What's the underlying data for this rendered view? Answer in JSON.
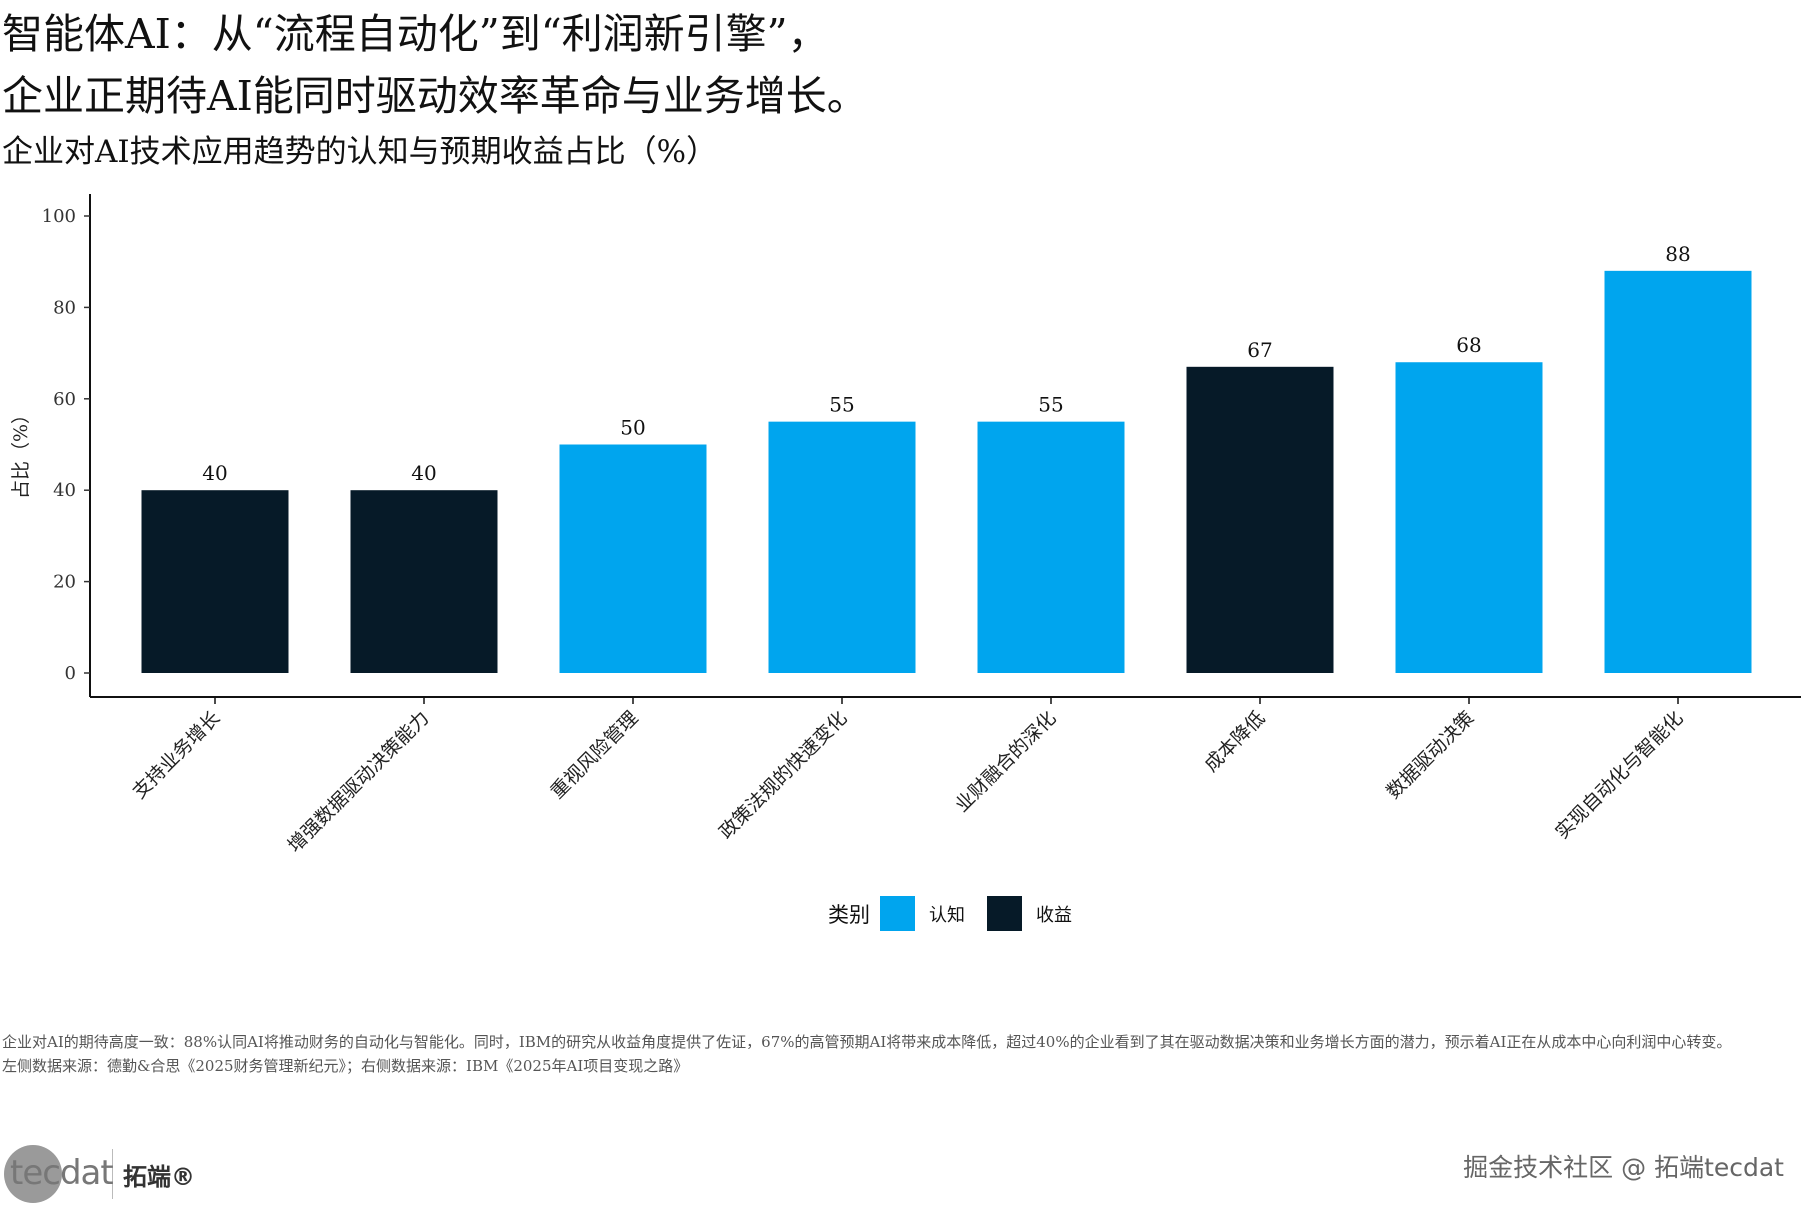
{
  "header": {
    "title_line1": "智能体AI：从“流程自动化”到“利润新引擎”，",
    "title_line2": "企业正期待AI能同时驱动效率革命与业务增长。",
    "subtitle": "企业对AI技术应用趋势的认知与预期收益占比（%）"
  },
  "chart_data": {
    "type": "bar",
    "title": "企业对AI技术应用趋势的认知与预期收益占比（%）",
    "xlabel": "",
    "ylabel": "占比（%）",
    "ylim": [
      0,
      100
    ],
    "yticks": [
      0,
      20,
      40,
      60,
      80,
      100
    ],
    "categories": [
      "支持业务增长",
      "增强数据驱动决策能力",
      "重视风险管理",
      "政策法规的快速变化",
      "业财融合的深化",
      "成本降低",
      "数据驱动决策",
      "实现自动化与智能化"
    ],
    "values": [
      40,
      40,
      50,
      55,
      55,
      67,
      68,
      88
    ],
    "groups": [
      "收益",
      "收益",
      "认知",
      "认知",
      "认知",
      "收益",
      "认知",
      "认知"
    ],
    "legend": {
      "title": "类别",
      "position": "bottom",
      "items": [
        {
          "name": "认知",
          "color": "#00A5EE"
        },
        {
          "name": "收益",
          "color": "#061A28"
        }
      ]
    }
  },
  "footer": {
    "note": "企业对AI的期待高度一致：88%认同AI将推动财务的自动化与智能化。同时，IBM的研究从收益角度提供了佐证，67%的高管预期AI将带来成本降低，超过40%的企业看到了其在驱动数据决策和业务增长方面的潜力，预示着AI正在从成本中心向利润中心转变。",
    "source": "左侧数据来源：德勤&合思《2025财务管理新纪元》；右侧数据来源：IBM《2025年AI项目变现之路》",
    "logo_text": "tecdat",
    "logo_cn": "拓端®",
    "watermark": "掘金技术社区 @ 拓端tecdat"
  }
}
